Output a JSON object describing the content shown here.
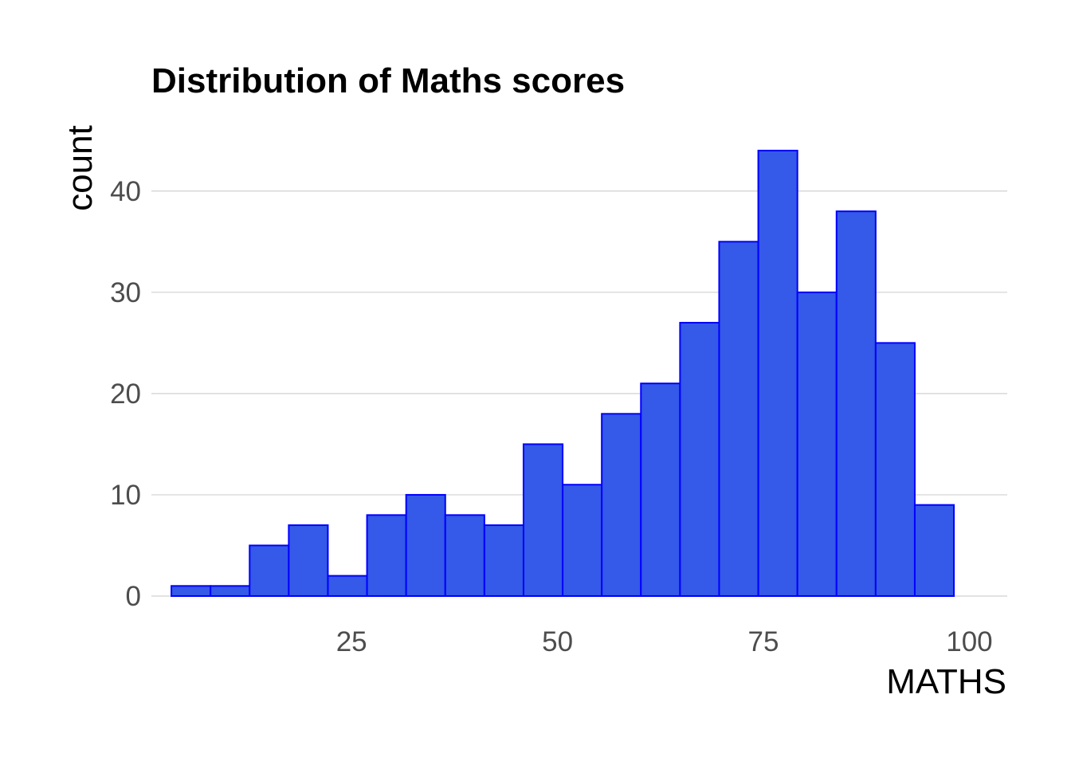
{
  "chart_data": {
    "type": "bar",
    "title": "Distribution of Maths scores",
    "xlabel": "MATHS",
    "ylabel": "count",
    "bin_width": 4.75,
    "bins": [
      {
        "x_center": 5.5,
        "count": 1
      },
      {
        "x_center": 10.25,
        "count": 1
      },
      {
        "x_center": 15.0,
        "count": 5
      },
      {
        "x_center": 19.75,
        "count": 7
      },
      {
        "x_center": 24.5,
        "count": 2
      },
      {
        "x_center": 29.25,
        "count": 8
      },
      {
        "x_center": 34.0,
        "count": 10
      },
      {
        "x_center": 38.75,
        "count": 8
      },
      {
        "x_center": 43.5,
        "count": 7
      },
      {
        "x_center": 48.25,
        "count": 15
      },
      {
        "x_center": 53.0,
        "count": 11
      },
      {
        "x_center": 57.75,
        "count": 18
      },
      {
        "x_center": 62.5,
        "count": 21
      },
      {
        "x_center": 67.25,
        "count": 27
      },
      {
        "x_center": 72.0,
        "count": 35
      },
      {
        "x_center": 76.75,
        "count": 44
      },
      {
        "x_center": 81.5,
        "count": 30
      },
      {
        "x_center": 86.25,
        "count": 38
      },
      {
        "x_center": 91.0,
        "count": 25
      },
      {
        "x_center": 95.75,
        "count": 9
      }
    ],
    "xlim": [
      0.7,
      104.6
    ],
    "ylim": [
      0,
      46.2
    ],
    "x_ticks": [
      25,
      50,
      75,
      100
    ],
    "x_tick_labels": [
      "25",
      "50",
      "75",
      "100"
    ],
    "y_ticks": [
      0,
      10,
      20,
      30,
      40
    ],
    "y_tick_labels": [
      "0",
      "10",
      "20",
      "30",
      "40"
    ],
    "grid": "horizontal major",
    "colors": {
      "fill": "#3559E8",
      "outline": "#0000FF",
      "grid": "#D0D0D0",
      "tick_text": "#4D4D4D"
    }
  }
}
